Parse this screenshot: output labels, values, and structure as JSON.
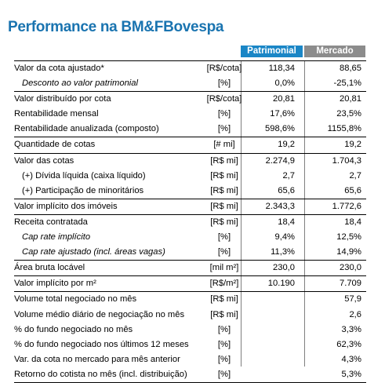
{
  "title": "Performance na BM&FBovespa",
  "columns": {
    "patrimonial": "Patrimonial",
    "mercado": "Mercado"
  },
  "rows": [
    {
      "label": "Valor da cota ajustado*",
      "unit": "[R$/cota]",
      "patrimonial": "118,34",
      "mercado": "88,65",
      "indent": false,
      "italic": false,
      "sep": true
    },
    {
      "label": "Desconto ao valor patrimonial",
      "unit": "[%]",
      "patrimonial": "0,0%",
      "mercado": "-25,1%",
      "indent": true,
      "italic": true,
      "sep": false
    },
    {
      "label": "Valor distribuído por cota",
      "unit": "[R$/cota]",
      "patrimonial": "20,81",
      "mercado": "20,81",
      "indent": false,
      "italic": false,
      "sep": true
    },
    {
      "label": "Rentabilidade mensal",
      "unit": "[%]",
      "patrimonial": "17,6%",
      "mercado": "23,5%",
      "indent": false,
      "italic": false,
      "sep": false
    },
    {
      "label": "Rentabilidade anualizada (composto)",
      "unit": "[%]",
      "patrimonial": "598,6%",
      "mercado": "1155,8%",
      "indent": false,
      "italic": false,
      "sep": false
    },
    {
      "label": "Quantidade de cotas",
      "unit": "[# mi]",
      "patrimonial": "19,2",
      "mercado": "19,2",
      "indent": false,
      "italic": false,
      "sep": true
    },
    {
      "label": "Valor das cotas",
      "unit": "[R$ mi]",
      "patrimonial": "2.274,9",
      "mercado": "1.704,3",
      "indent": false,
      "italic": false,
      "sep": true
    },
    {
      "label": "(+) Dívida líquida (caixa líquido)",
      "unit": "[R$ mi]",
      "patrimonial": "2,7",
      "mercado": "2,7",
      "indent": true,
      "italic": false,
      "sep": false
    },
    {
      "label": "(+) Participação de minoritários",
      "unit": "[R$ mi]",
      "patrimonial": "65,6",
      "mercado": "65,6",
      "indent": true,
      "italic": false,
      "sep": false
    },
    {
      "label": "Valor implícito dos imóveis",
      "unit": "[R$ mi]",
      "patrimonial": "2.343,3",
      "mercado": "1.772,6",
      "indent": false,
      "italic": false,
      "sep": true
    },
    {
      "label": "Receita contratada",
      "unit": "[R$ mi]",
      "patrimonial": "18,4",
      "mercado": "18,4",
      "indent": false,
      "italic": false,
      "sep": true
    },
    {
      "label": "Cap rate  implícito",
      "unit": "[%]",
      "patrimonial": "9,4%",
      "mercado": "12,5%",
      "indent": true,
      "italic": true,
      "sep": false
    },
    {
      "label": "Cap rate ajustado (incl. áreas vagas)",
      "unit": "[%]",
      "patrimonial": "11,3%",
      "mercado": "14,9%",
      "indent": true,
      "italic": true,
      "sep": false
    },
    {
      "label": "Área bruta locável",
      "unit": "[mil m²]",
      "patrimonial": "230,0",
      "mercado": "230,0",
      "indent": false,
      "italic": false,
      "sep": true
    },
    {
      "label": "Valor implícito por m²",
      "unit": "[R$/m²]",
      "patrimonial": "10.190",
      "mercado": "7.709",
      "indent": false,
      "italic": false,
      "sep": true
    },
    {
      "label": "Volume total negociado no mês",
      "unit": "[R$ mi]",
      "patrimonial": "",
      "mercado": "57,9",
      "indent": false,
      "italic": false,
      "sep": true
    },
    {
      "label": "Volume médio diário de negociação no mês",
      "unit": "[R$ mi]",
      "patrimonial": "",
      "mercado": "2,6",
      "indent": false,
      "italic": false,
      "sep": false
    },
    {
      "label": "% do fundo negociado no mês",
      "unit": "[%]",
      "patrimonial": "",
      "mercado": "3,3%",
      "indent": false,
      "italic": false,
      "sep": false
    },
    {
      "label": "% do fundo negociado nos últimos 12 meses",
      "unit": "[%]",
      "patrimonial": "",
      "mercado": "62,3%",
      "indent": false,
      "italic": false,
      "sep": false
    },
    {
      "label": "Var. da cota no mercado para mês anterior",
      "unit": "[%]",
      "patrimonial": "",
      "mercado": "4,3%",
      "indent": false,
      "italic": false,
      "sep": false
    },
    {
      "label": "Retorno do cotista no mês (incl. distribuição)",
      "unit": "[%]",
      "patrimonial": "",
      "mercado": "5,3%",
      "indent": false,
      "italic": false,
      "sep": false
    }
  ]
}
